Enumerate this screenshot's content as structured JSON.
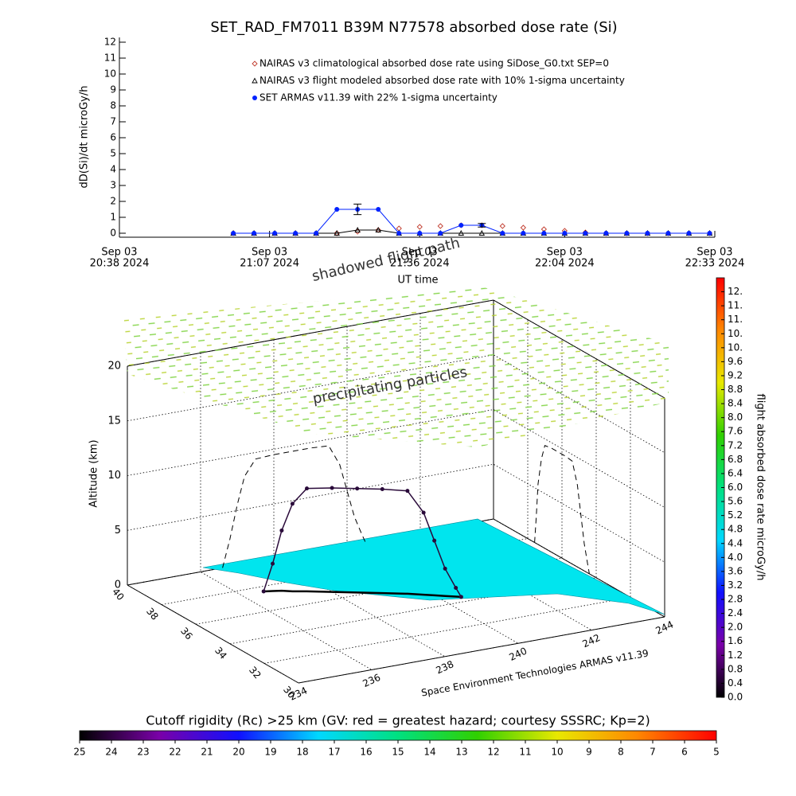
{
  "chart_data": [
    {
      "type": "line",
      "title": "SET_RAD_FM7011  B39M N77578 absorbed dose rate (Si)",
      "x_label": "UT time",
      "y_label": "dD(Si)/dt microGy/h",
      "x": [
        "2024-09-03 21:00",
        "2024-09-03 21:04",
        "2024-09-03 21:08",
        "2024-09-03 21:12",
        "2024-09-03 21:16",
        "2024-09-03 21:20",
        "2024-09-03 21:24",
        "2024-09-03 21:28",
        "2024-09-03 21:32",
        "2024-09-03 21:36",
        "2024-09-03 21:40",
        "2024-09-03 21:44",
        "2024-09-03 21:48",
        "2024-09-03 21:52",
        "2024-09-03 21:56",
        "2024-09-03 22:00",
        "2024-09-03 22:04",
        "2024-09-03 22:08",
        "2024-09-03 22:12",
        "2024-09-03 22:16",
        "2024-09-03 22:20",
        "2024-09-03 22:24",
        "2024-09-03 22:28",
        "2024-09-03 22:32"
      ],
      "xlim": [
        "2024-09-03 20:38",
        "2024-09-03 22:33"
      ],
      "xticks": [
        {
          "value": "2024-09-03 20:38",
          "label": [
            "Sep 03",
            "20:38 2024"
          ]
        },
        {
          "value": "2024-09-03 21:07",
          "label": [
            "Sep 03",
            "21:07 2024"
          ]
        },
        {
          "value": "2024-09-03 21:36",
          "label": [
            "Sep 03",
            "21:36 2024"
          ]
        },
        {
          "value": "2024-09-03 22:04",
          "label": [
            "Sep 03",
            "22:04 2024"
          ]
        },
        {
          "value": "2024-09-03 22:33",
          "label": [
            "Sep 03",
            "22:33 2024"
          ]
        }
      ],
      "ylim": [
        -0.25,
        12.3
      ],
      "yticks": [
        0,
        1,
        2,
        3,
        4,
        5,
        6,
        7,
        8,
        9,
        10,
        11,
        12
      ],
      "series": [
        {
          "name": "NAIRAS v3 climatological absorbed dose rate using SiDose_G0.txt SEP=0",
          "color": "#c0392b",
          "marker": "diamond",
          "line": false,
          "values": [
            0,
            0,
            0,
            0,
            0,
            0,
            0.1,
            0.2,
            0.3,
            0.4,
            0.45,
            0.5,
            0.5,
            0.45,
            0.35,
            0.25,
            0.15,
            0.05,
            0,
            0,
            0,
            0,
            0,
            0
          ]
        },
        {
          "name": "NAIRAS v3 flight modeled absorbed dose rate with 10% 1-sigma uncertainty",
          "color": "#000000",
          "marker": "triangle",
          "line": true,
          "values": [
            0,
            0,
            0,
            0,
            0,
            0,
            0.2,
            0.2,
            0,
            0,
            0,
            0,
            0,
            0,
            0,
            0,
            0,
            0,
            0,
            0,
            0,
            0,
            0,
            0
          ]
        },
        {
          "name": "SET ARMAS v11.39 with 22% 1-sigma uncertainty",
          "color": "#0022ff",
          "marker": "circle",
          "line": true,
          "values": [
            0,
            0,
            0,
            0,
            0,
            1.5,
            1.5,
            1.5,
            0,
            0,
            0,
            0.5,
            0.5,
            0,
            0,
            0,
            0,
            0,
            0,
            0,
            0,
            0,
            0,
            0
          ],
          "error_bars": [
            {
              "x": "2024-09-03 21:24",
              "value": 1.5,
              "error": 0.33
            },
            {
              "x": "2024-09-03 21:48",
              "value": 0.5,
              "error": 0.11
            }
          ]
        }
      ]
    },
    {
      "type": "scatter3d",
      "z_label": "Altitude (km)",
      "annotations": [
        "shadowed flight path",
        "precipitating particles",
        "Space Environment Technologies ARMAS v11.39"
      ],
      "xlim": [
        234,
        244
      ],
      "xticks": [
        234,
        236,
        238,
        240,
        242,
        244
      ],
      "ylim": [
        30,
        40
      ],
      "yticks": [
        30,
        32,
        34,
        36,
        38,
        40
      ],
      "zlim": [
        0,
        20
      ],
      "zticks": [
        0,
        5,
        10,
        15,
        20
      ],
      "grid": true,
      "flight_path": {
        "color": "#2a0a3a",
        "lon": [
          236.6,
          236.8,
          237.0,
          237.2,
          237.5,
          238.0,
          238.5,
          239.0,
          239.5,
          239.8,
          240.0,
          240.2,
          240.4,
          240.5
        ],
        "lat": [
          37.6,
          37.5,
          37.4,
          37.2,
          37.0,
          36.6,
          36.2,
          35.8,
          35.4,
          35.1,
          34.9,
          34.7,
          34.5,
          34.4
        ],
        "alt": [
          0,
          2.5,
          5.5,
          8,
          9.4,
          9.5,
          9.5,
          9.5,
          9.4,
          7.5,
          5,
          2.5,
          0.8,
          0
        ]
      }
    },
    {
      "type": "colorbar",
      "orientation": "vertical",
      "label": "flight absorbed dose rate microGy/h",
      "lim": [
        0,
        12
      ],
      "colormap": [
        "#000000",
        "#7a00a8",
        "#1010ff",
        "#00d8ff",
        "#00e080",
        "#30d000",
        "#e8e800",
        "#ff8800",
        "#ff0000"
      ],
      "ticks": [
        {
          "value": 0,
          "label": "0.0"
        },
        0.4,
        0.8,
        1.2,
        1.6,
        {
          "value": 2,
          "label": "2.0"
        },
        2.4,
        2.8,
        3.2,
        3.6,
        {
          "value": 4,
          "label": "4.0"
        },
        4.4,
        4.8,
        5.2,
        5.6,
        {
          "value": 6,
          "label": "6.0"
        },
        6.4,
        6.8,
        7.2,
        7.6,
        {
          "value": 8,
          "label": "8.0"
        },
        8.4,
        8.8,
        9.2,
        9.6,
        {
          "value": 10,
          "label": "10."
        },
        {
          "value": 10.4,
          "label": "10."
        },
        {
          "value": 10.8,
          "label": "11."
        },
        {
          "value": 11.2,
          "label": "11."
        },
        {
          "value": 11.6,
          "label": "12."
        }
      ]
    },
    {
      "type": "colorbar",
      "orientation": "horizontal",
      "title": "Cutoff rigidity (Rc) >25 km (GV: red = greatest hazard; courtesy SSSRC; Kp=2)",
      "lim": [
        25,
        5
      ],
      "colormap": [
        "#000000",
        "#7a00a8",
        "#1010ff",
        "#00d8ff",
        "#00e080",
        "#30d000",
        "#e8e800",
        "#ff8800",
        "#ff0000"
      ],
      "ticks": [
        25,
        24,
        23,
        22,
        21,
        20,
        19,
        18,
        17,
        16,
        15,
        14,
        13,
        12,
        11,
        10,
        9,
        8,
        7,
        6,
        5
      ]
    }
  ]
}
